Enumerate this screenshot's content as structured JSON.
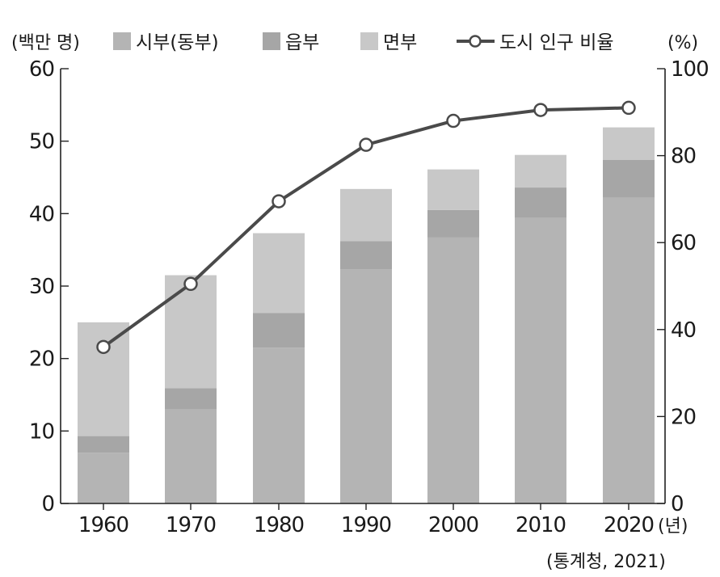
{
  "chart_data": {
    "type": "bar",
    "stacked": true,
    "categories": [
      "1960",
      "1970",
      "1980",
      "1990",
      "2000",
      "2010",
      "2020"
    ],
    "xunit": "(년)",
    "left_axis": {
      "unit": "(백만 명)",
      "ylim": [
        0,
        60
      ],
      "ticks": [
        0,
        10,
        20,
        30,
        40,
        50,
        60
      ]
    },
    "right_axis": {
      "unit": "(%)",
      "ylim": [
        0,
        100
      ],
      "ticks": [
        0,
        20,
        40,
        60,
        80,
        100
      ]
    },
    "series": [
      {
        "name": "시부(동부)",
        "axis": "left",
        "color": "#b4b4b4",
        "values": [
          7,
          13,
          21.5,
          32.3,
          36.7,
          39.4,
          42.2
        ]
      },
      {
        "name": "읍부",
        "axis": "left",
        "color": "#a6a6a6",
        "values": [
          2.3,
          2.9,
          4.8,
          3.9,
          3.8,
          4.2,
          5.2
        ]
      },
      {
        "name": "면부",
        "axis": "left",
        "color": "#c8c8c8",
        "values": [
          15.7,
          15.6,
          11,
          7.2,
          5.6,
          4.5,
          4.5
        ]
      },
      {
        "name": "도시 인구 비율",
        "type": "line",
        "axis": "right",
        "color": "#4a4a4a",
        "values": [
          36,
          50.5,
          69.5,
          82.5,
          88,
          90.5,
          91
        ]
      }
    ],
    "grid": false,
    "legend_position": "top"
  },
  "source": "(통계청, 2021)"
}
